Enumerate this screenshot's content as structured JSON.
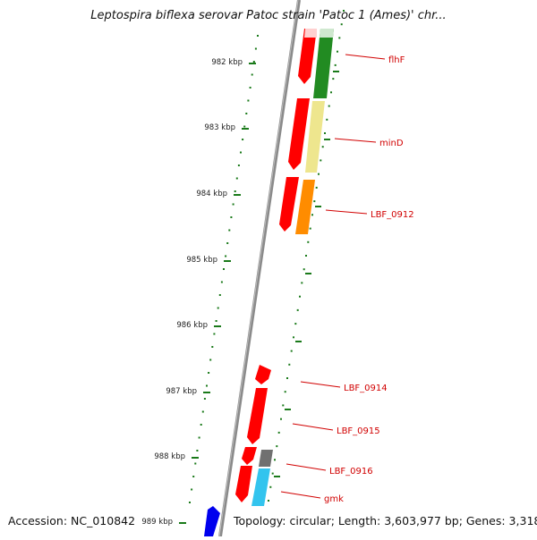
{
  "title": "Leptospira biflexa serovar Patoc strain 'Patoc 1 (Ames)' chr...",
  "accession": "Accession: NC_010842",
  "topology": "Topology: circular; Length: 3,603,977 bp; Genes: 3,318",
  "ticks": [
    {
      "label": "982 kbp"
    },
    {
      "label": "983 kbp"
    },
    {
      "label": "984 kbp"
    },
    {
      "label": "985 kbp"
    },
    {
      "label": "986 kbp"
    },
    {
      "label": "987 kbp"
    },
    {
      "label": "988 kbp"
    },
    {
      "label": "989 kbp"
    }
  ],
  "genes": [
    {
      "label": "flhF",
      "color": "#228b22"
    },
    {
      "label": "minD",
      "color": "#eee68e"
    },
    {
      "label": "LBF_0912",
      "color": "#ff8c00"
    },
    {
      "label": "LBF_0914",
      "color": "#ff0000"
    },
    {
      "label": "LBF_0915",
      "color": "#ff0000"
    },
    {
      "label": "LBF_0916",
      "color": "#707070"
    },
    {
      "label": "gmk",
      "color": "#33c4ee"
    }
  ],
  "colors": {
    "cds": "#ff0000",
    "label": "#d10000",
    "tick": "#1a7a1a",
    "backbone": "#888888",
    "other_strand": "#0000ee"
  }
}
